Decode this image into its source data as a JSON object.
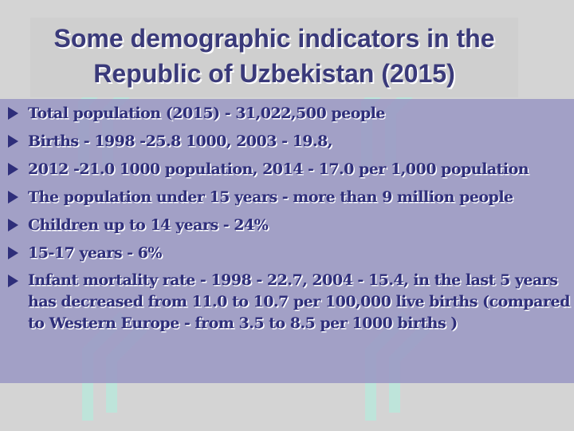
{
  "slide": {
    "title": "Some demographic indicators in the Republic of Uzbekistan (2015)",
    "bullets": [
      "Total population (2015) - 31,022,500 people",
      "Births - 1998 -25.8 1000, 2003 - 19.8,",
      "2012 -21.0 1000 population, 2014 - 17.0 per 1,000 population",
      "The population under 15 years - more than 9 million people",
      "Children up to 14 years - 24%",
      "15-17 years - 6%",
      "Infant mortality rate - 1998 - 22.7, 2004 - 15.4, in the last 5 years has decreased from 11.0 to 10.7 per 100,000 live births (compared to Western Europe - from 3.5 to 8.5 per 1000 births )"
    ],
    "bullet_icon": "triangle-bullet-icon",
    "colors": {
      "text": "#2e2e7a",
      "content_bg": "#9b98c4",
      "page_bg": "#d4d4d4",
      "watermark": "#b9ece0"
    }
  }
}
